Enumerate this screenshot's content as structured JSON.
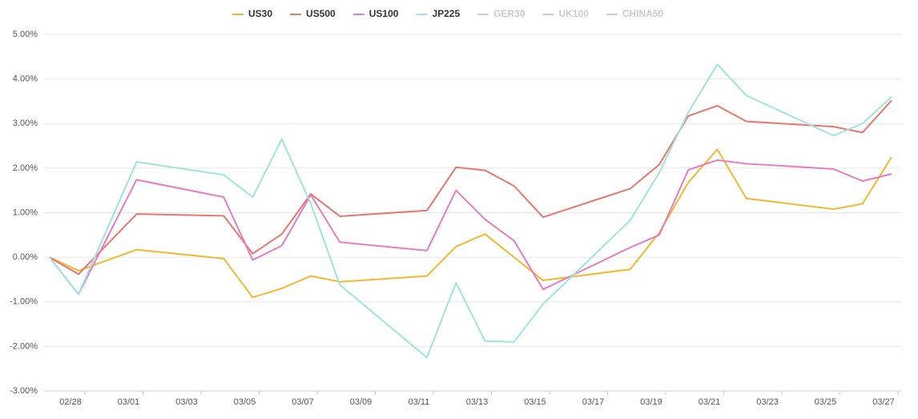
{
  "chart_data": {
    "type": "line",
    "x": [
      "02/27",
      "02/28",
      "03/01",
      "03/04",
      "03/05",
      "03/06",
      "03/07",
      "03/08",
      "03/11",
      "03/12",
      "03/13",
      "03/14",
      "03/15",
      "03/18",
      "03/19",
      "03/20",
      "03/21",
      "03/22",
      "03/25",
      "03/26",
      "03/27"
    ],
    "series": [
      {
        "name": "US30",
        "color": "#f5b730",
        "values": [
          0,
          -0.3,
          0.17,
          -0.03,
          -0.9,
          -0.7,
          -0.42,
          -0.55,
          -0.42,
          0.24,
          0.52,
          0.0,
          -0.52,
          -0.27,
          0.55,
          1.68,
          2.42,
          1.32,
          1.08,
          1.2,
          2.25
        ]
      },
      {
        "name": "US500",
        "color": "#e8766c",
        "values": [
          0,
          -0.38,
          0.97,
          0.93,
          0.08,
          0.52,
          1.42,
          0.92,
          1.05,
          2.02,
          1.95,
          1.6,
          0.9,
          1.54,
          2.08,
          3.17,
          3.4,
          3.05,
          2.93,
          2.8,
          3.52
        ]
      },
      {
        "name": "US100",
        "color": "#e87bbf",
        "values": [
          0,
          -0.83,
          1.74,
          1.35,
          -0.06,
          0.26,
          1.4,
          0.34,
          0.15,
          1.5,
          0.85,
          0.37,
          -0.72,
          0.22,
          0.5,
          1.96,
          2.18,
          2.1,
          1.98,
          1.71,
          1.87
        ]
      },
      {
        "name": "JP225",
        "color": "#9de5dc",
        "values": [
          0,
          -0.83,
          2.14,
          1.85,
          1.35,
          2.65,
          1.2,
          -0.62,
          -2.25,
          -0.57,
          -1.88,
          -1.9,
          -1.05,
          0.83,
          1.9,
          3.25,
          4.33,
          3.63,
          2.73,
          3.0,
          3.6
        ]
      }
    ],
    "hidden_series": [
      {
        "name": "GER30",
        "color": "#cccccc"
      },
      {
        "name": "UK100",
        "color": "#cccccc"
      },
      {
        "name": "CHINA50",
        "color": "#cccccc"
      }
    ],
    "ylim": [
      -3,
      5
    ],
    "yticks": [
      {
        "value": -3,
        "label": "-3.00%"
      },
      {
        "value": -2,
        "label": "-2.00%"
      },
      {
        "value": -1,
        "label": "-1.00%"
      },
      {
        "value": 0,
        "label": "0.00%"
      },
      {
        "value": 1,
        "label": "1.00%"
      },
      {
        "value": 2,
        "label": "2.00%"
      },
      {
        "value": 3,
        "label": "3.00%"
      },
      {
        "value": 4,
        "label": "4.00%"
      },
      {
        "value": 5,
        "label": "5.00%"
      }
    ],
    "xticks": [
      "02/28",
      "03/01",
      "03/03",
      "03/05",
      "03/07",
      "03/09",
      "03/11",
      "03/13",
      "03/15",
      "03/17",
      "03/19",
      "03/21",
      "03/23",
      "03/25",
      "03/27"
    ],
    "grid": true
  }
}
